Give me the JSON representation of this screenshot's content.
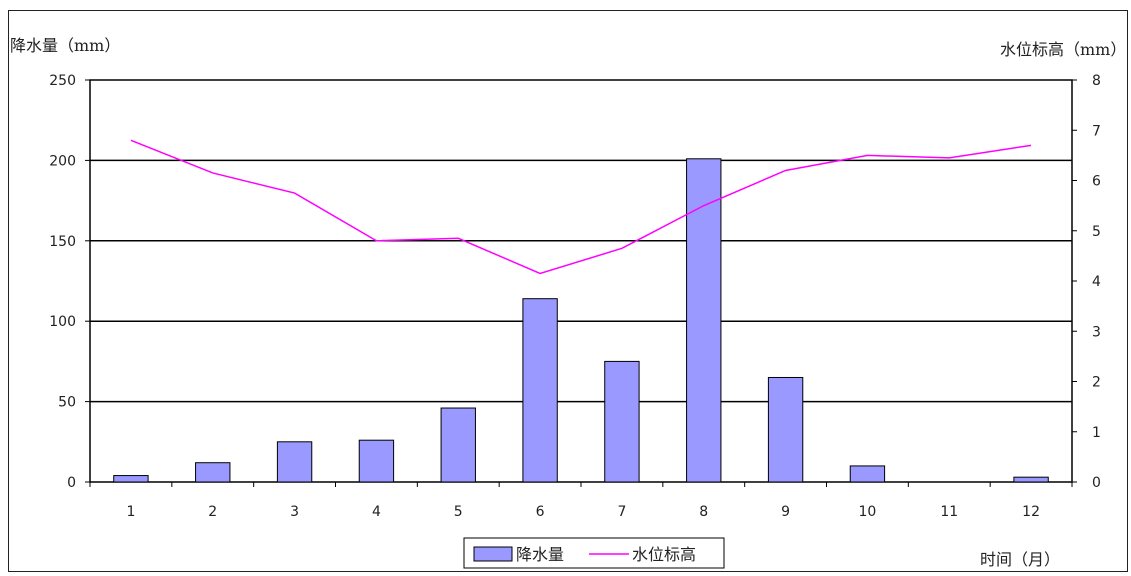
{
  "chart_data": {
    "type": "bar+line",
    "x_label": "时间（月）",
    "categories": [
      "1",
      "2",
      "3",
      "4",
      "5",
      "6",
      "7",
      "8",
      "9",
      "10",
      "11",
      "12"
    ],
    "left_axis": {
      "label": "降水量（mm）",
      "ylim": [
        0,
        250
      ],
      "ticks": [
        "0",
        "50",
        "100",
        "150",
        "200",
        "250"
      ]
    },
    "right_axis": {
      "label": "水位标高（mm）",
      "ylim": [
        0,
        8
      ],
      "ticks": [
        "0",
        "1",
        "2",
        "3",
        "4",
        "5",
        "6",
        "7",
        "8"
      ]
    },
    "series": [
      {
        "name": "降水量",
        "kind": "bar",
        "axis": "left",
        "color": "#9999ff",
        "values": [
          4,
          12,
          25,
          26,
          46,
          114,
          75,
          201,
          65,
          10,
          0,
          3
        ]
      },
      {
        "name": "水位标高",
        "kind": "line",
        "axis": "right",
        "color": "#ff00ff",
        "values": [
          6.8,
          6.15,
          5.75,
          4.8,
          4.85,
          4.15,
          4.65,
          5.5,
          6.2,
          6.5,
          6.45,
          6.7
        ]
      }
    ],
    "grid": "horizontal",
    "legend": "bottom-center"
  }
}
